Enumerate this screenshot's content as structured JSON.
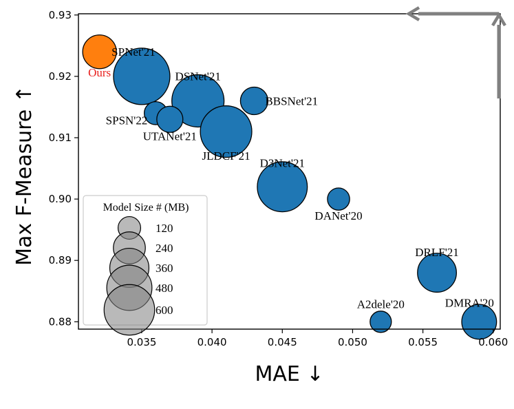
{
  "chart_data": {
    "type": "scatter",
    "xlabel": "MAE ↓",
    "ylabel": "Max F-Measure ↑",
    "xlim": [
      0.0305,
      0.0605
    ],
    "ylim": [
      0.8788,
      0.9302
    ],
    "x_ticks": [
      "0.035",
      "0.040",
      "0.045",
      "0.050",
      "0.055",
      "0.060"
    ],
    "x_tick_values": [
      0.035,
      0.04,
      0.045,
      0.05,
      0.055,
      0.06
    ],
    "y_ticks": [
      "0.88",
      "0.89",
      "0.90",
      "0.91",
      "0.92",
      "0.93"
    ],
    "y_tick_values": [
      0.88,
      0.89,
      0.9,
      0.91,
      0.92,
      0.93
    ],
    "grid": false,
    "colors": {
      "ours": "#ff7f0e",
      "others": "#1f77b4",
      "ours_label": "#e8201e",
      "legend_marker": "#808080",
      "arrow": "#808080"
    },
    "points": [
      {
        "name": "Ours",
        "x": 0.032,
        "y": 0.924,
        "size_mb": 150,
        "highlight": true
      },
      {
        "name": "SPNet'21",
        "x": 0.035,
        "y": 0.92,
        "size_mb": 420
      },
      {
        "name": "DSNet'21",
        "x": 0.039,
        "y": 0.916,
        "size_mb": 360
      },
      {
        "name": "BBSNet'21",
        "x": 0.043,
        "y": 0.916,
        "size_mb": 100
      },
      {
        "name": "SPSN'22",
        "x": 0.036,
        "y": 0.914,
        "size_mb": 70
      },
      {
        "name": "UTANet'21",
        "x": 0.037,
        "y": 0.913,
        "size_mb": 90
      },
      {
        "name": "JLDCF'21",
        "x": 0.041,
        "y": 0.911,
        "size_mb": 350
      },
      {
        "name": "D3Net'21",
        "x": 0.045,
        "y": 0.902,
        "size_mb": 330
      },
      {
        "name": "DANet'20",
        "x": 0.049,
        "y": 0.9,
        "size_mb": 65
      },
      {
        "name": "DRLF'21",
        "x": 0.056,
        "y": 0.888,
        "size_mb": 200
      },
      {
        "name": "A2dele'20",
        "x": 0.052,
        "y": 0.88,
        "size_mb": 60
      },
      {
        "name": "DMRA'20",
        "x": 0.059,
        "y": 0.88,
        "size_mb": 160
      }
    ],
    "legend": {
      "title": "Model Size # (MB)",
      "placement": "lower-left",
      "entries": [
        {
          "label": "120",
          "size_mb": 120
        },
        {
          "label": "240",
          "size_mb": 240
        },
        {
          "label": "360",
          "size_mb": 360
        },
        {
          "label": "480",
          "size_mb": 480
        },
        {
          "label": "600",
          "size_mb": 600
        }
      ]
    }
  }
}
